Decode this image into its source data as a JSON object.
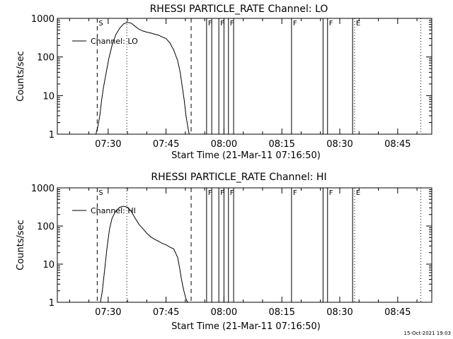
{
  "footer": {
    "timestamp": "15-Oct-2021 19:03"
  },
  "chart_data": [
    {
      "type": "line",
      "title": "RHESSI PARTICLE_RATE Channel: LO",
      "xlabel": "Start Time (21-Mar-11 07:16:50)",
      "ylabel": "Counts/sec",
      "y_scale": "log",
      "ylim": [
        1,
        1000
      ],
      "xlim": [
        "07:16:50",
        "08:53:50"
      ],
      "x_tick_labels": [
        "07:30",
        "07:45",
        "08:00",
        "08:15",
        "08:30",
        "08:45"
      ],
      "y_tick_labels": [
        "1",
        "10",
        "100",
        "1000"
      ],
      "legend": {
        "placement": "top-left",
        "entries": [
          "Channel: LO"
        ]
      },
      "series": [
        {
          "name": "Channel: LO",
          "x": [
            "07:26:50",
            "07:27:20",
            "07:27:50",
            "07:28:20",
            "07:28:50",
            "07:29:30",
            "07:30:10",
            "07:31:00",
            "07:32:00",
            "07:33:00",
            "07:34:00",
            "07:35:00",
            "07:36:00",
            "07:37:00",
            "07:38:00",
            "07:39:00",
            "07:40:00",
            "07:41:00",
            "07:42:00",
            "07:43:00",
            "07:44:00",
            "07:45:00",
            "07:46:00",
            "07:47:00",
            "07:48:00",
            "07:48:40",
            "07:49:10",
            "07:49:40",
            "07:50:10",
            "07:50:40",
            "07:51:00"
          ],
          "y": [
            1,
            1.6,
            3,
            8,
            17,
            40,
            90,
            200,
            380,
            560,
            720,
            790,
            750,
            620,
            520,
            470,
            440,
            420,
            390,
            370,
            330,
            300,
            230,
            150,
            80,
            40,
            18,
            8,
            3,
            1.5,
            1
          ]
        }
      ],
      "markers": [
        {
          "time": "07:27:10",
          "style": "dashed",
          "label": "S"
        },
        {
          "time": "07:34:50",
          "style": "dotted",
          "label": ""
        },
        {
          "time": "07:51:30",
          "style": "dashed",
          "label": ""
        },
        {
          "time": "07:55:30",
          "style": "solid",
          "label": "F"
        },
        {
          "time": "07:56:50",
          "style": "solid",
          "label": ""
        },
        {
          "time": "07:58:40",
          "style": "solid",
          "label": "F"
        },
        {
          "time": "08:00:00",
          "style": "solid",
          "label": ""
        },
        {
          "time": "08:01:10",
          "style": "solid",
          "label": "F"
        },
        {
          "time": "08:02:30",
          "style": "solid",
          "label": ""
        },
        {
          "time": "08:17:30",
          "style": "solid",
          "label": "F"
        },
        {
          "time": "08:25:40",
          "style": "solid",
          "label": ""
        },
        {
          "time": "08:26:50",
          "style": "solid",
          "label": "F"
        },
        {
          "time": "08:33:20",
          "style": "solid",
          "label": ""
        },
        {
          "time": "08:33:50",
          "style": "dotted",
          "label": "E"
        },
        {
          "time": "08:51:00",
          "style": "dotted",
          "label": ""
        }
      ]
    },
    {
      "type": "line",
      "title": "RHESSI PARTICLE_RATE Channel: HI",
      "xlabel": "Start Time (21-Mar-11 07:16:50)",
      "ylabel": "Counts/sec",
      "y_scale": "log",
      "ylim": [
        1,
        1000
      ],
      "xlim": [
        "07:16:50",
        "08:53:50"
      ],
      "x_tick_labels": [
        "07:30",
        "07:45",
        "08:00",
        "08:15",
        "08:30",
        "08:45"
      ],
      "y_tick_labels": [
        "1",
        "10",
        "100",
        "1000"
      ],
      "legend": {
        "placement": "top-left",
        "entries": [
          "Channel: HI"
        ]
      },
      "series": [
        {
          "name": "Channel: HI",
          "x": [
            "07:28:00",
            "07:28:30",
            "07:29:00",
            "07:29:40",
            "07:30:20",
            "07:31:00",
            "07:32:00",
            "07:33:00",
            "07:34:00",
            "07:35:00",
            "07:36:00",
            "07:37:00",
            "07:38:00",
            "07:39:00",
            "07:40:00",
            "07:41:00",
            "07:42:00",
            "07:43:00",
            "07:44:00",
            "07:45:00",
            "07:46:00",
            "07:47:00",
            "07:48:00",
            "07:48:30",
            "07:49:00",
            "07:49:30",
            "07:50:00",
            "07:50:20",
            "07:50:40"
          ],
          "y": [
            1,
            2,
            6,
            25,
            80,
            160,
            250,
            310,
            330,
            310,
            240,
            160,
            110,
            85,
            65,
            52,
            45,
            40,
            35,
            32,
            28,
            25,
            15,
            8,
            4,
            2.2,
            1.4,
            1.1,
            1
          ]
        }
      ],
      "markers": [
        {
          "time": "07:27:10",
          "style": "dashed",
          "label": "S"
        },
        {
          "time": "07:34:50",
          "style": "dotted",
          "label": ""
        },
        {
          "time": "07:51:30",
          "style": "dashed",
          "label": ""
        },
        {
          "time": "07:55:30",
          "style": "solid",
          "label": "F"
        },
        {
          "time": "07:56:50",
          "style": "solid",
          "label": ""
        },
        {
          "time": "07:58:40",
          "style": "solid",
          "label": "F"
        },
        {
          "time": "08:00:00",
          "style": "solid",
          "label": ""
        },
        {
          "time": "08:01:10",
          "style": "solid",
          "label": "F"
        },
        {
          "time": "08:02:30",
          "style": "solid",
          "label": ""
        },
        {
          "time": "08:17:30",
          "style": "solid",
          "label": "F"
        },
        {
          "time": "08:25:40",
          "style": "solid",
          "label": ""
        },
        {
          "time": "08:26:50",
          "style": "solid",
          "label": "F"
        },
        {
          "time": "08:33:20",
          "style": "solid",
          "label": ""
        },
        {
          "time": "08:33:50",
          "style": "dotted",
          "label": "E"
        },
        {
          "time": "08:51:00",
          "style": "dotted",
          "label": ""
        }
      ]
    }
  ]
}
